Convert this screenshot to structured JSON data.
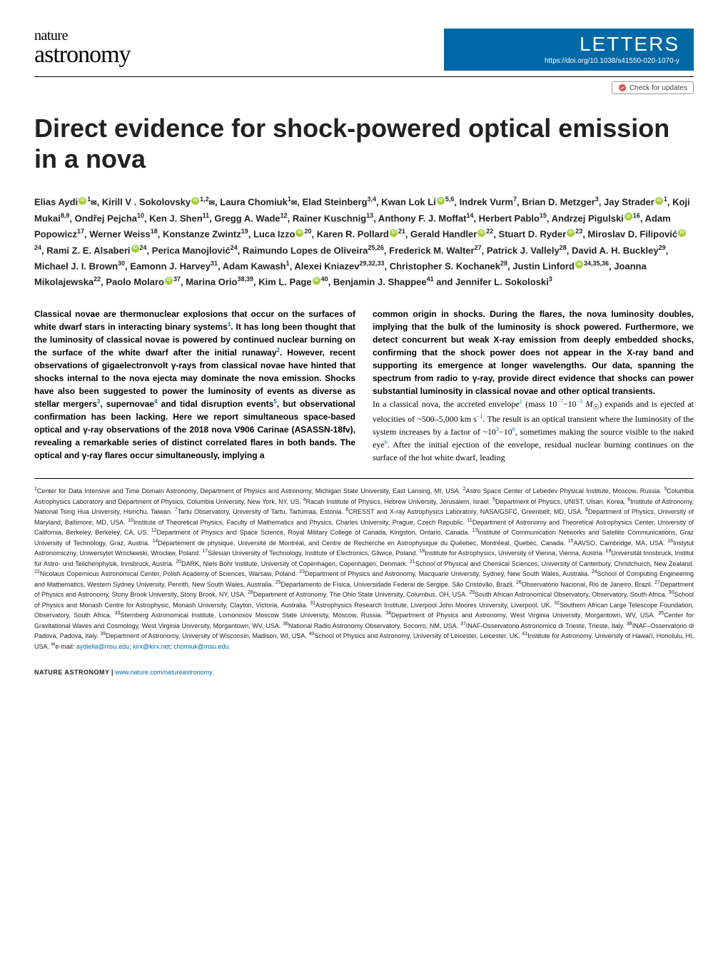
{
  "journal": {
    "line1": "nature",
    "line2": "astronomy",
    "section": "LETTERS",
    "doi_url": "https://doi.org/10.1038/s41550-020-1070-y"
  },
  "check_updates": "Check for updates",
  "title": "Direct evidence for shock-powered optical emission in a nova",
  "authors_html": "Elias Aydi<span class='orcid-icon'></span><sup>1</sup><span class='mail-icon'>✉</span>, Kirill V . Sokolovsky<span class='orcid-icon'></span><sup>1,2</sup><span class='mail-icon'>✉</span>, Laura Chomiuk<sup>1</sup><span class='mail-icon'>✉</span>, Elad Steinberg<sup>3,4</sup>, Kwan Lok Li<span class='orcid-icon'></span><sup>5,6</sup>, Indrek Vurm<sup>7</sup>, Brian D. Metzger<sup>3</sup>, Jay Strader<span class='orcid-icon'></span><sup>1</sup>, Koji Mukai<sup>8,9</sup>, Ondřej Pejcha<sup>10</sup>, Ken J. Shen<sup>11</sup>, Gregg A. Wade<sup>12</sup>, Rainer Kuschnig<sup>13</sup>, Anthony F. J. Moffat<sup>14</sup>, Herbert Pablo<sup>15</sup>, Andrzej Pigulski<span class='orcid-icon'></span><sup>16</sup>, Adam Popowicz<sup>17</sup>, Werner Weiss<sup>18</sup>, Konstanze Zwintz<sup>19</sup>, Luca Izzo<span class='orcid-icon'></span><sup>20</sup>, Karen R. Pollard<span class='orcid-icon'></span><sup>21</sup>, Gerald Handler<span class='orcid-icon'></span><sup>22</sup>, Stuart D. Ryder<span class='orcid-icon'></span><sup>23</sup>, Miroslav D. Filipović<span class='orcid-icon'></span><sup>24</sup>, Rami Z. E. Alsaberi<span class='orcid-icon'></span><sup>24</sup>, Perica Manojlović<sup>24</sup>, Raimundo Lopes de Oliveira<sup>25,26</sup>, Frederick M. Walter<sup>27</sup>, Patrick J. Vallely<sup>28</sup>, David A. H. Buckley<sup>29</sup>, Michael J. I. Brown<sup>30</sup>, Eamonn J. Harvey<sup>31</sup>, Adam Kawash<sup>1</sup>, Alexei Kniazev<sup>29,32,33</sup>, Christopher S. Kochanek<sup>28</sup>, Justin Linford<span class='orcid-icon'></span><sup>34,35,36</sup>, Joanna Mikolajewska<sup>22</sup>, Paolo Molaro<span class='orcid-icon'></span><sup>37</sup>, Marina Orio<sup>38,39</sup>, Kim L. Page<span class='orcid-icon'></span><sup>40</sup>, Benjamin J. Shappee<sup>41</sup> and Jennifer L. Sokoloski<sup>3</sup>",
  "abstract": {
    "left": "Classical novae are thermonuclear explosions that occur on the surfaces of white dwarf stars in interacting binary systems<sup>1</sup>. It has long been thought that the luminosity of classical novae is powered by continued nuclear burning on the surface of the white dwarf after the initial runaway<sup>2</sup>. However, recent observations of gigaelectronvolt γ-rays from classical novae have hinted that shocks internal to the nova ejecta may dominate the nova emission. Shocks have also been suggested to power the luminosity of events as diverse as stellar mergers<sup>3</sup>, supernovae<sup>4</sup> and tidal disruption events<sup>5</sup>, but observational confirmation has been lacking. Here we report simultaneous space-based optical and γ-ray observations of the 2018 nova V906 Carinae (ASASSN-18fv), revealing a remarkable series of distinct correlated flares in both bands. The optical and γ-ray flares occur simultaneously, implying a",
    "right_bold": "common origin in shocks. During the flares, the nova luminosity doubles, implying that the bulk of the luminosity is shock powered. Furthermore, we detect concurrent but weak X-ray emission from deeply embedded shocks, confirming that the shock power does not appear in the X-ray band and supporting its emergence at longer wavelengths. Our data, spanning the spectrum from radio to γ-ray, provide direct evidence that shocks can power substantial luminosity in classical novae and other optical transients.",
    "right_normal": "In a classical nova, the accreted envelope<sup>1</sup> (mass 10<sup>−7</sup>−10<sup>−3</sup> <i>M</i><sub>☉</sub>) expands and is ejected at velocities of ~500–5,000 km s<sup>−1</sup>. The result is an optical transient where the luminosity of the system increases by a factor of ~10<sup>3</sup>−10<sup>6</sup>, sometimes making the source visible to the naked eye<sup>6</sup>. After the initial ejection of the envelope, residual nuclear burning continues on the surface of the hot white dwarf, leading"
  },
  "affiliations": "<sup>1</sup>Center for Data Intensive and Time Domain Astronomy, Department of Physics and Astronomy, Michigan State University, East Lansing, MI, USA. <sup>2</sup>Astro Space Center of Lebedev Physical Institute, Moscow, Russia. <sup>3</sup>Columbia Astrophysics Laboratory and Department of Physics, Columbia University, New York, NY, US. <sup>4</sup>Racah Institute of Physics, Hebrew University, Jerusalem, Israel. <sup>5</sup>Department of Physics, UNIST, Ulsan, Korea. <sup>6</sup>Institute of Astronomy, National Tsing Hua University, Hsinchu, Taiwan. <sup>7</sup>Tartu Observatory, University of Tartu, Tartumaa, Estonia. <sup>8</sup>CRESST and X-ray Astrophysics Laboratory, NASA/GSFC, Greenbelt, MD, USA. <sup>9</sup>Department of Physics, University of Maryland, Baltimore, MD, USA. <sup>10</sup>Institute of Theoretical Physics, Faculty of Mathematics and Physics, Charles University, Prague, Czech Republic. <sup>11</sup>Department of Astronomy and Theoretical Astrophysics Center, University of California, Berkeley, Berkeley, CA, US. <sup>12</sup>Department of Physics and Space Science, Royal Military College of Canada, Kingston, Ontario, Canada. <sup>13</sup>Institute of Communication Networks and Satellite Communications, Graz University of Technology, Graz, Austria. <sup>14</sup>Département de physique, Université de Montréal, and Centre de Recherche en Astrophysique du Quéebec, Montréeal, Quebec, Canada. <sup>15</sup>AAVSO, Cambridge, MA, USA. <sup>16</sup>Instytut Astronomiczny, Uniwersytet Wrocławski, Wrocław, Poland. <sup>17</sup>Silesian University of Technology, Institute of Electronics, Gliwice, Poland. <sup>18</sup>Institute for Astrophysics, University of Vienna, Vienna, Austria. <sup>19</sup>Universität Innsbruck, Institut für Astro- und Teilchenphysik, Innsbruck, Austria. <sup>20</sup>DARK, Niels Bohr Institute, University of Copenhagen, Copenhagen, Denmark. <sup>21</sup>School of Physical and Chemical Sciences, University of Canterbury, Christchurch, New Zealand. <sup>22</sup>Nicolaus Copernicus Astronomical Center, Polish Academy of Sciences, Warsaw, Poland. <sup>23</sup>Department of Physics and Astronomy, Macquarie University, Sydney, New South Wales, Australia. <sup>24</sup>School of Computing Engineering and Mathematics, Western Sydney University, Penrith, New South Wales, Australia. <sup>25</sup>Departamento de Física, Universidade Federal de Sergipe, São Cristóvão, Brazil. <sup>26</sup>Observatório Nacional, Rio de Janeiro, Brazil. <sup>27</sup>Department of Physics and Astronomy, Stony Brook University, Stony Brook, NY, USA. <sup>28</sup>Department of Astronomy, The Ohio State University, Columbus, OH, USA. <sup>29</sup>South African Astronomical Observatory, Observatory, South Africa. <sup>30</sup>School of Physics and Monash Centre for Astrophysic, Monash University, Clayton, Victoria, Australia. <sup>31</sup>Astrophysics Research Institute, Liverpool John Moores University, Liverpool, UK. <sup>32</sup>Southern African Large Telescope Foundation, Observatory, South Africa. <sup>33</sup>Sternberg Astronomical Institute, Lomonosov Moscow State University, Moscow, Russia. <sup>34</sup>Department of Physics and Astronomy, West Virginia University, Morgantown, WV, USA. <sup>35</sup>Center for Gravitational Waves and Cosmology, West Virginia University, Morgantown, WV, USA. <sup>36</sup>National Radio Astronomy Observatory, Socorro, NM, USA. <sup>37</sup>INAF-Osservatorio Astronomico di Trieste, Trieste, Italy. <sup>38</sup>INAF–Osservatorio di Padova, Padova, Italy. <sup>39</sup>Department of Astronomy, University of Wisconsin, Madison, WI, USA. <sup>40</sup>School of Physics and Astronomy, University of Leicester, Leicester, UK. <sup>41</sup>Institute for Astronomy, University of Hawai'i, Honolulu, HI, USA. <sup>✉</sup>e-mail: <a href='#'>aydielia@msu.edu</a>; <a href='#'>kirx@kirx.net</a>; <a href='#'>chomiuk@msu.edu</a>",
  "footer": {
    "journal": "NATURE ASTRONOMY",
    "url": "www.nature.com/natureastronomy"
  }
}
